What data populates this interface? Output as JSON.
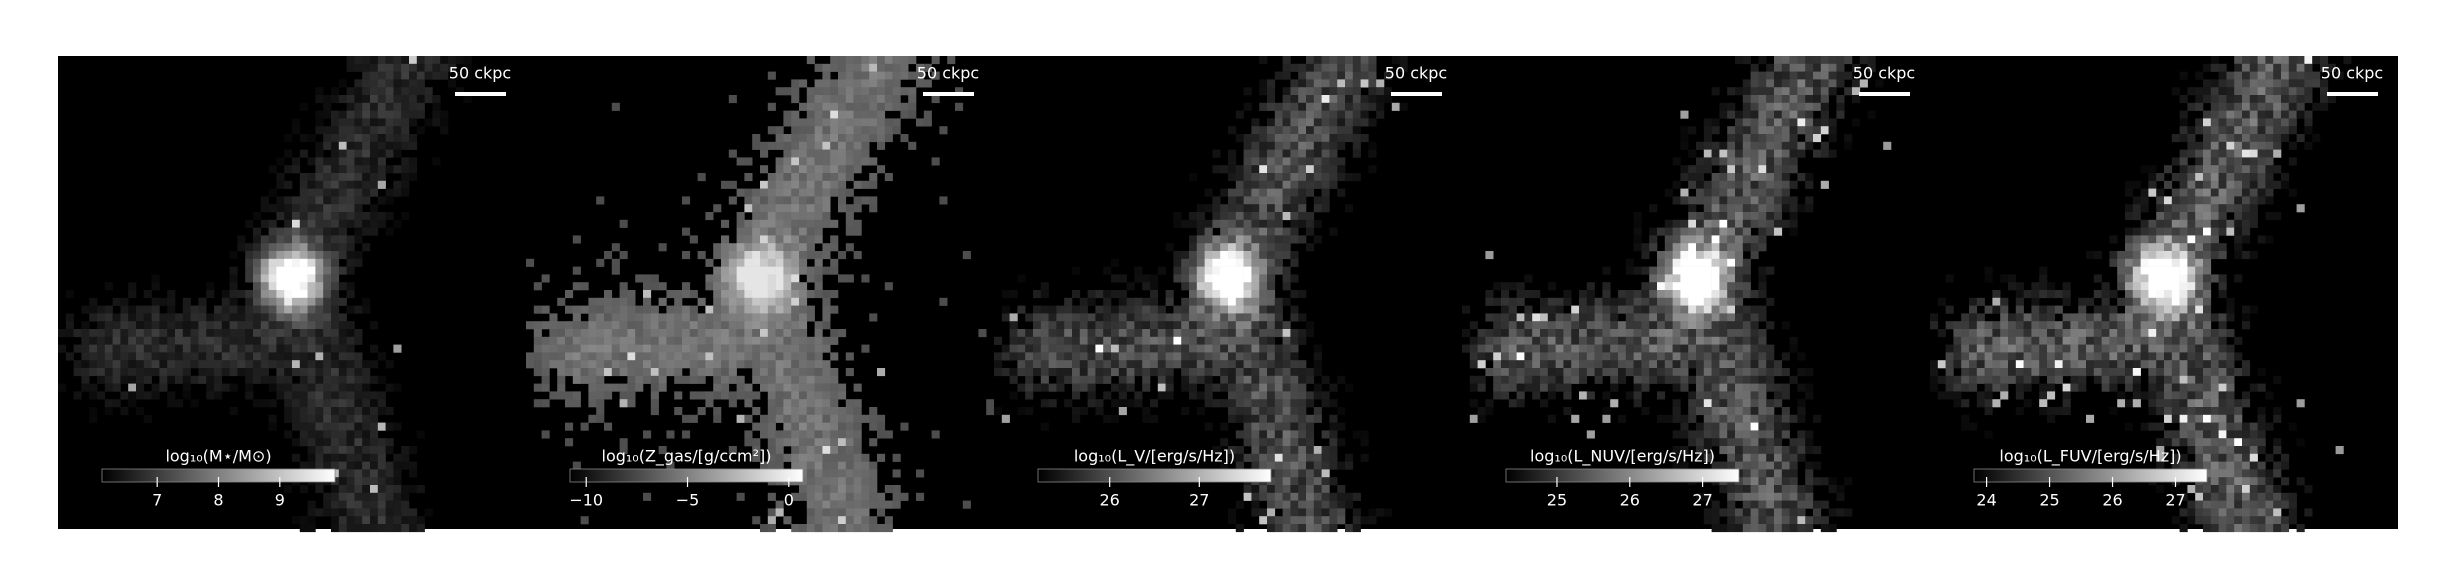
{
  "chart_data": [
    {
      "type": "image",
      "scalebar": "50 ckpc",
      "colorbar_label": "log₁₀(M⋆/M⊙)",
      "clim": [
        6.1,
        9.9
      ],
      "cticks": [
        7,
        8,
        9
      ]
    },
    {
      "type": "image",
      "scalebar": "50 ckpc",
      "colorbar_label": "log₁₀(Z_gas/[g/ccm²])",
      "clim": [
        -10.8,
        0.7
      ],
      "cticks": [
        {
          "value": -10,
          "label": "−10"
        },
        {
          "value": -5,
          "label": "−5"
        },
        0
      ]
    },
    {
      "type": "image",
      "scalebar": "50 ckpc",
      "colorbar_label": "log₁₀(L_V/[erg/s/Hz])",
      "clim": [
        25.2,
        27.8
      ],
      "cticks": [
        26,
        27
      ]
    },
    {
      "type": "image",
      "scalebar": "50 ckpc",
      "colorbar_label": "log₁₀(L_NUV/[erg/s/Hz])",
      "clim": [
        24.3,
        27.5
      ],
      "cticks": [
        25,
        26,
        27
      ]
    },
    {
      "type": "image",
      "scalebar": "50 ckpc",
      "colorbar_label": "log₁₀(L_FUV/[erg/s/Hz])",
      "clim": [
        23.8,
        27.5
      ],
      "cticks": [
        24,
        25,
        26,
        27
      ]
    }
  ]
}
